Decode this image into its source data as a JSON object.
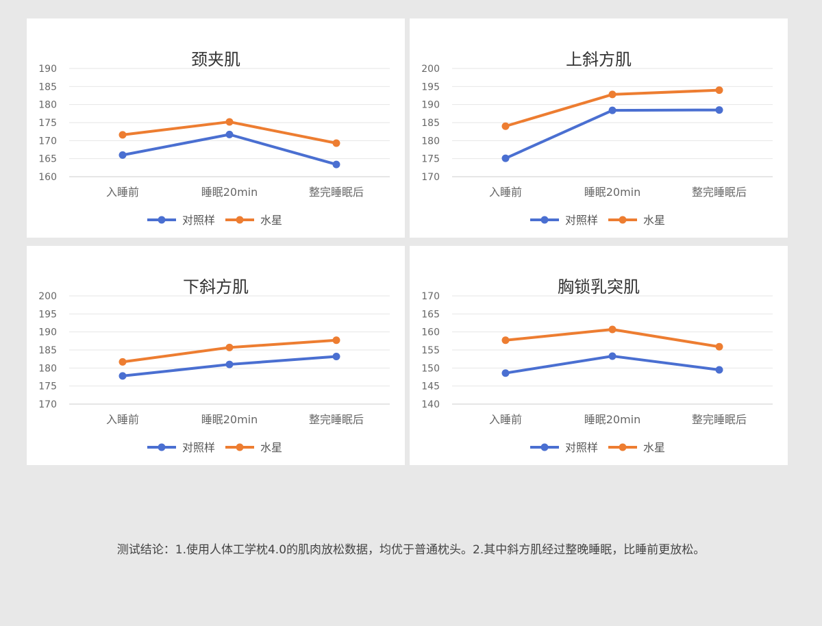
{
  "colors": {
    "control": "#4a6fd1",
    "mercury": "#ed7d31",
    "grid": "#e6e6e6",
    "axis": "#cccccc",
    "tick": "#666666"
  },
  "conclusion": "测试结论：1.使用人体工学枕4.0的肌肉放松数据，均优于普通枕头。2.其中斜方肌经过整晚睡眠，比睡前更放松。",
  "chart_data": [
    {
      "type": "line",
      "title": "颈夹肌",
      "categories": [
        "入睡前",
        "睡眠20min",
        "整完睡眠后"
      ],
      "ylim": [
        160,
        190
      ],
      "yticks": [
        160,
        165,
        170,
        175,
        180,
        185,
        190
      ],
      "grid": true,
      "legend": "bottom",
      "series": [
        {
          "name": "对照样",
          "color": "#4a6fd1",
          "values": [
            166,
            171.7,
            163.4
          ]
        },
        {
          "name": "水星",
          "color": "#ed7d31",
          "values": [
            171.6,
            175.2,
            169.3
          ]
        }
      ]
    },
    {
      "type": "line",
      "title": "上斜方肌",
      "categories": [
        "入睡前",
        "睡眠20min",
        "整完睡眠后"
      ],
      "ylim": [
        170,
        200
      ],
      "yticks": [
        170,
        175,
        180,
        185,
        190,
        195,
        200
      ],
      "grid": true,
      "legend": "bottom",
      "series": [
        {
          "name": "对照样",
          "color": "#4a6fd1",
          "values": [
            175.1,
            188.4,
            188.5
          ]
        },
        {
          "name": "水星",
          "color": "#ed7d31",
          "values": [
            184,
            192.8,
            194
          ]
        }
      ]
    },
    {
      "type": "line",
      "title": "下斜方肌",
      "categories": [
        "入睡前",
        "睡眠20min",
        "整完睡眠后"
      ],
      "ylim": [
        170,
        200
      ],
      "yticks": [
        170,
        175,
        180,
        185,
        190,
        195,
        200
      ],
      "grid": true,
      "legend": "bottom",
      "series": [
        {
          "name": "对照样",
          "color": "#4a6fd1",
          "values": [
            177.8,
            181,
            183.2
          ]
        },
        {
          "name": "水星",
          "color": "#ed7d31",
          "values": [
            181.7,
            185.7,
            187.7
          ]
        }
      ]
    },
    {
      "type": "line",
      "title": "胸锁乳突肌",
      "categories": [
        "入睡前",
        "睡眠20min",
        "整完睡眠后"
      ],
      "ylim": [
        140,
        170
      ],
      "yticks": [
        140,
        145,
        150,
        155,
        160,
        165,
        170
      ],
      "grid": true,
      "legend": "bottom",
      "series": [
        {
          "name": "对照样",
          "color": "#4a6fd1",
          "values": [
            148.6,
            153.3,
            149.5
          ]
        },
        {
          "name": "水星",
          "color": "#ed7d31",
          "values": [
            157.7,
            160.7,
            155.9
          ]
        }
      ]
    }
  ]
}
